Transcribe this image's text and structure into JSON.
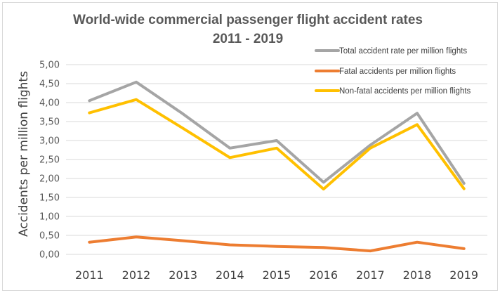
{
  "chart_data": {
    "type": "line",
    "title_line1": "World-wide commercial passenger flight accident rates",
    "title_line2": "2011 - 2019",
    "xlabel": "",
    "ylabel": "Accidents per million flights",
    "ylim": [
      0,
      5
    ],
    "yticks": [
      "0,00",
      "0,50",
      "1,00",
      "1,50",
      "2,00",
      "2,50",
      "3,00",
      "3,50",
      "4,00",
      "4,50",
      "5,00"
    ],
    "categories": [
      "2011",
      "2012",
      "2013",
      "2014",
      "2015",
      "2016",
      "2017",
      "2018",
      "2019"
    ],
    "grid": true,
    "legend_position": "top-right",
    "series": [
      {
        "name": "Total accident rate per million flights",
        "color": "#a5a5a5",
        "values": [
          4.05,
          4.54,
          3.7,
          2.8,
          3.0,
          1.9,
          2.88,
          3.72,
          1.87
        ]
      },
      {
        "name": "Fatal accidents per million flights",
        "color": "#ed7d31",
        "values": [
          0.32,
          0.46,
          0.36,
          0.25,
          0.21,
          0.18,
          0.09,
          0.32,
          0.15
        ]
      },
      {
        "name": "Non-fatal accidents per million flights",
        "color": "#ffc000",
        "values": [
          3.73,
          4.08,
          3.32,
          2.55,
          2.8,
          1.72,
          2.8,
          3.42,
          1.73
        ]
      }
    ]
  }
}
